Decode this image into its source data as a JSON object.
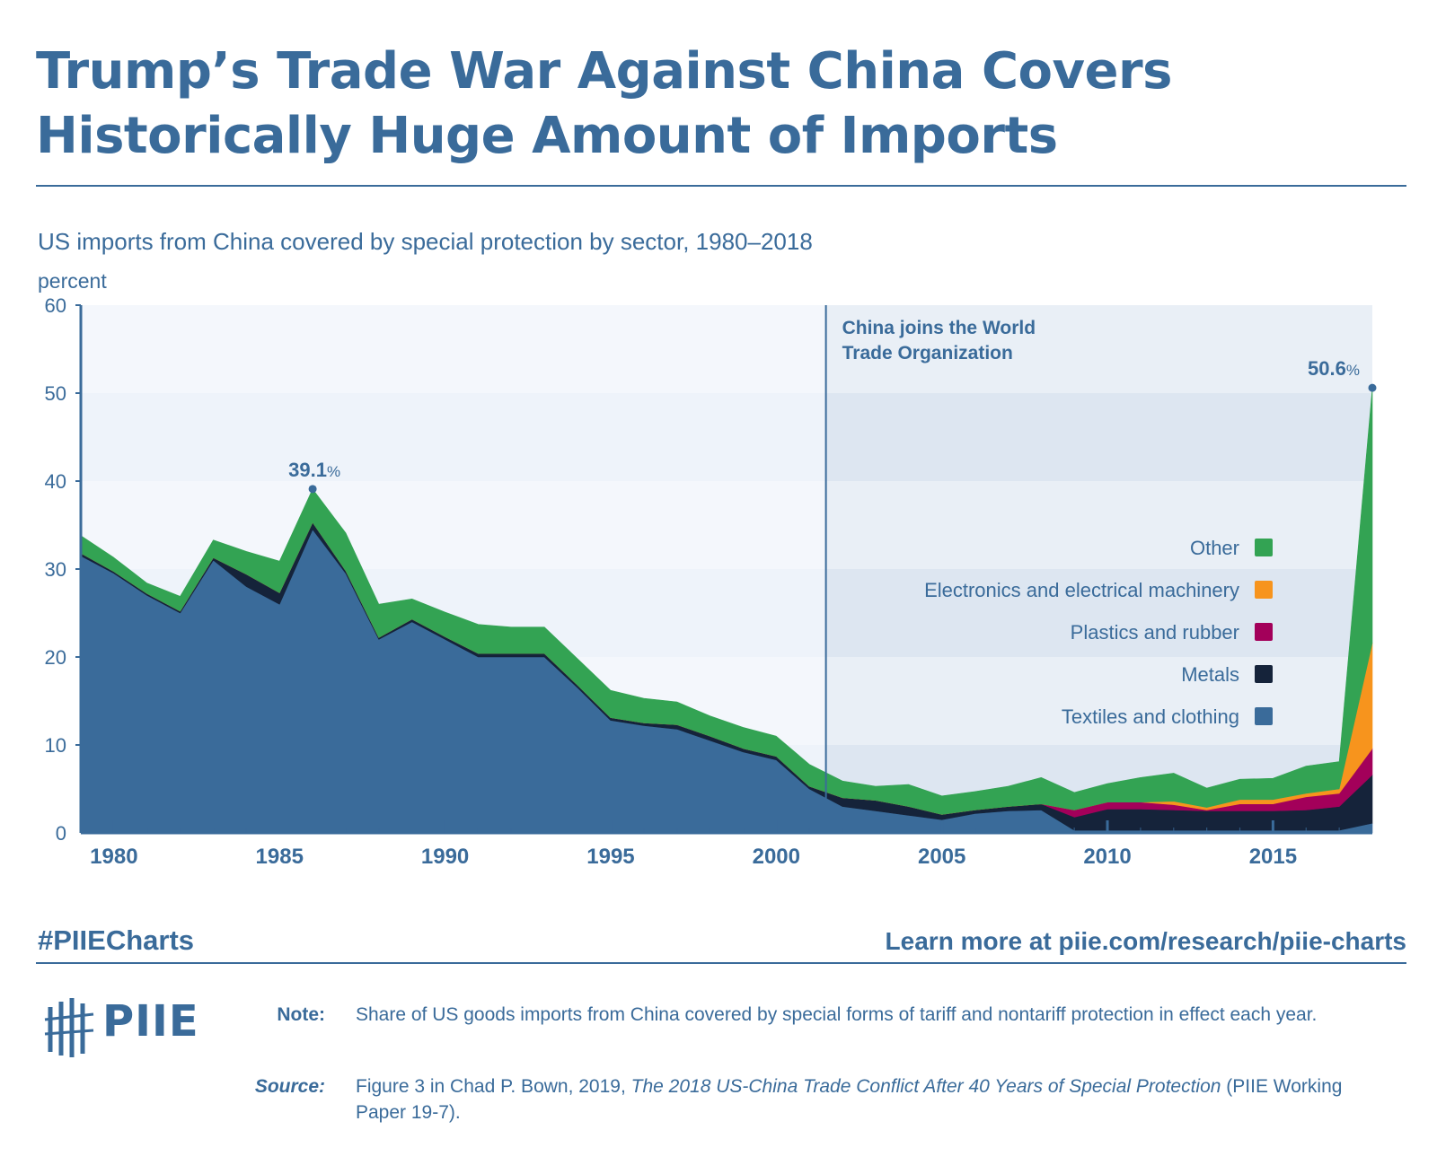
{
  "header": {
    "title_line1": "Trump’s Trade War Against China Covers",
    "title_line2": "Historically Huge Amount of Imports"
  },
  "chart_data": {
    "type": "area",
    "title": "US imports from China covered by special protection by sector, 1980–2018",
    "ylabel": "percent",
    "xlim": [
      1979,
      2018
    ],
    "ylim": [
      0,
      60
    ],
    "y_ticks": [
      "0",
      "10",
      "20",
      "30",
      "40",
      "50",
      "60"
    ],
    "x_ticks": [
      "1980",
      "1985",
      "1990",
      "1995",
      "2000",
      "2005",
      "2010",
      "2015"
    ],
    "x": [
      1979,
      1980,
      1981,
      1982,
      1983,
      1984,
      1985,
      1986,
      1987,
      1988,
      1989,
      1990,
      1991,
      1992,
      1993,
      1994,
      1995,
      1996,
      1997,
      1998,
      1999,
      2000,
      2001,
      2002,
      2003,
      2004,
      2005,
      2006,
      2007,
      2008,
      2009,
      2010,
      2011,
      2012,
      2013,
      2014,
      2015,
      2016,
      2017,
      2018
    ],
    "stacked": true,
    "series": [
      {
        "name": "Textiles and clothing",
        "color": "#3a6b9a",
        "values": [
          31.5,
          29.5,
          27,
          25,
          31,
          28,
          26,
          34.5,
          29.5,
          22,
          24,
          22,
          20,
          20,
          20,
          16.5,
          12.8,
          12.2,
          11.8,
          10.5,
          9.2,
          8.3,
          5,
          3,
          2.5,
          2,
          1.5,
          2.2,
          2.5,
          2.6,
          0.3,
          0.3,
          0.3,
          0.3,
          0.3,
          0.3,
          0.3,
          0.3,
          0.3,
          1.1
        ]
      },
      {
        "name": "Metals",
        "color": "#15233a",
        "values": [
          0.3,
          0.2,
          0.2,
          0.2,
          0.3,
          1.4,
          1.3,
          0.8,
          0.3,
          0.2,
          0.3,
          0.3,
          0.4,
          0.4,
          0.4,
          0.3,
          0.3,
          0.3,
          0.5,
          0.5,
          0.4,
          0.4,
          0.3,
          1,
          1.2,
          1,
          0.6,
          0.4,
          0.5,
          0.7,
          1.5,
          2.4,
          2.4,
          2.3,
          2.2,
          2.2,
          2.2,
          2.3,
          2.7,
          5.5
        ]
      },
      {
        "name": "Plastics and rubber",
        "color": "#a3005a",
        "values": [
          0,
          0,
          0,
          0,
          0,
          0,
          0,
          0,
          0,
          0,
          0,
          0,
          0,
          0,
          0,
          0,
          0,
          0,
          0,
          0,
          0,
          0,
          0,
          0,
          0,
          0,
          0,
          0,
          0,
          0,
          0.8,
          0.8,
          0.8,
          0.6,
          0.1,
          0.8,
          0.8,
          1.5,
          1.5,
          3
        ]
      },
      {
        "name": "Electronics and electrical machinery",
        "color": "#f7941d",
        "values": [
          0,
          0,
          0,
          0,
          0,
          0,
          0,
          0,
          0,
          0,
          0,
          0,
          0,
          0,
          0,
          0,
          0,
          0,
          0,
          0,
          0,
          0,
          0,
          0,
          0,
          0,
          0,
          0,
          0,
          0,
          0,
          0,
          0,
          0.4,
          0.3,
          0.5,
          0.5,
          0.4,
          0.5,
          12
        ]
      },
      {
        "name": "Other",
        "color": "#33a353",
        "values": [
          2,
          1.6,
          1.2,
          1.7,
          2,
          2.6,
          3.6,
          3.8,
          4.3,
          3.8,
          2.3,
          2.8,
          3.3,
          3,
          3,
          3,
          3.1,
          2.8,
          2.6,
          2.3,
          2.4,
          2.3,
          2.5,
          1.9,
          1.6,
          2.5,
          2.1,
          2.1,
          2.3,
          3,
          2,
          2.1,
          2.8,
          3.2,
          2.2,
          2.3,
          2.4,
          3.1,
          3.1,
          29
        ]
      }
    ],
    "wto_year": 2001.5,
    "wto_label_line1": "China joins the World",
    "wto_label_line2": "Trade Organization",
    "annotations": [
      {
        "x": 1986,
        "y": 39.1,
        "value": "39.1",
        "unit": "%"
      },
      {
        "x": 2018,
        "y": 50.6,
        "value": "50.6",
        "unit": "%"
      }
    ],
    "legend_position": "right",
    "colors": {
      "text": "#3a6b9a",
      "plot_bg_pre": "#eef3fa",
      "plot_bg_post": "#dde6f1",
      "band_dark": "#d3deec"
    }
  },
  "footer": {
    "hashtag": "#PIIECharts",
    "learn_more": "Learn more at piie.com/research/piie-charts",
    "logo_text": "PIIE",
    "note_label": "Note:",
    "note_text": "Share of US goods imports from China covered by special forms of tariff and nontariff protection in effect each year.",
    "source_label": "Source:",
    "source_prefix": "Figure 3 in Chad P. Bown, 2019, ",
    "source_title": "The 2018 US-China Trade Conflict After 40 Years of Special Protection",
    "source_suffix": " (PIIE Working Paper 19-7)."
  }
}
